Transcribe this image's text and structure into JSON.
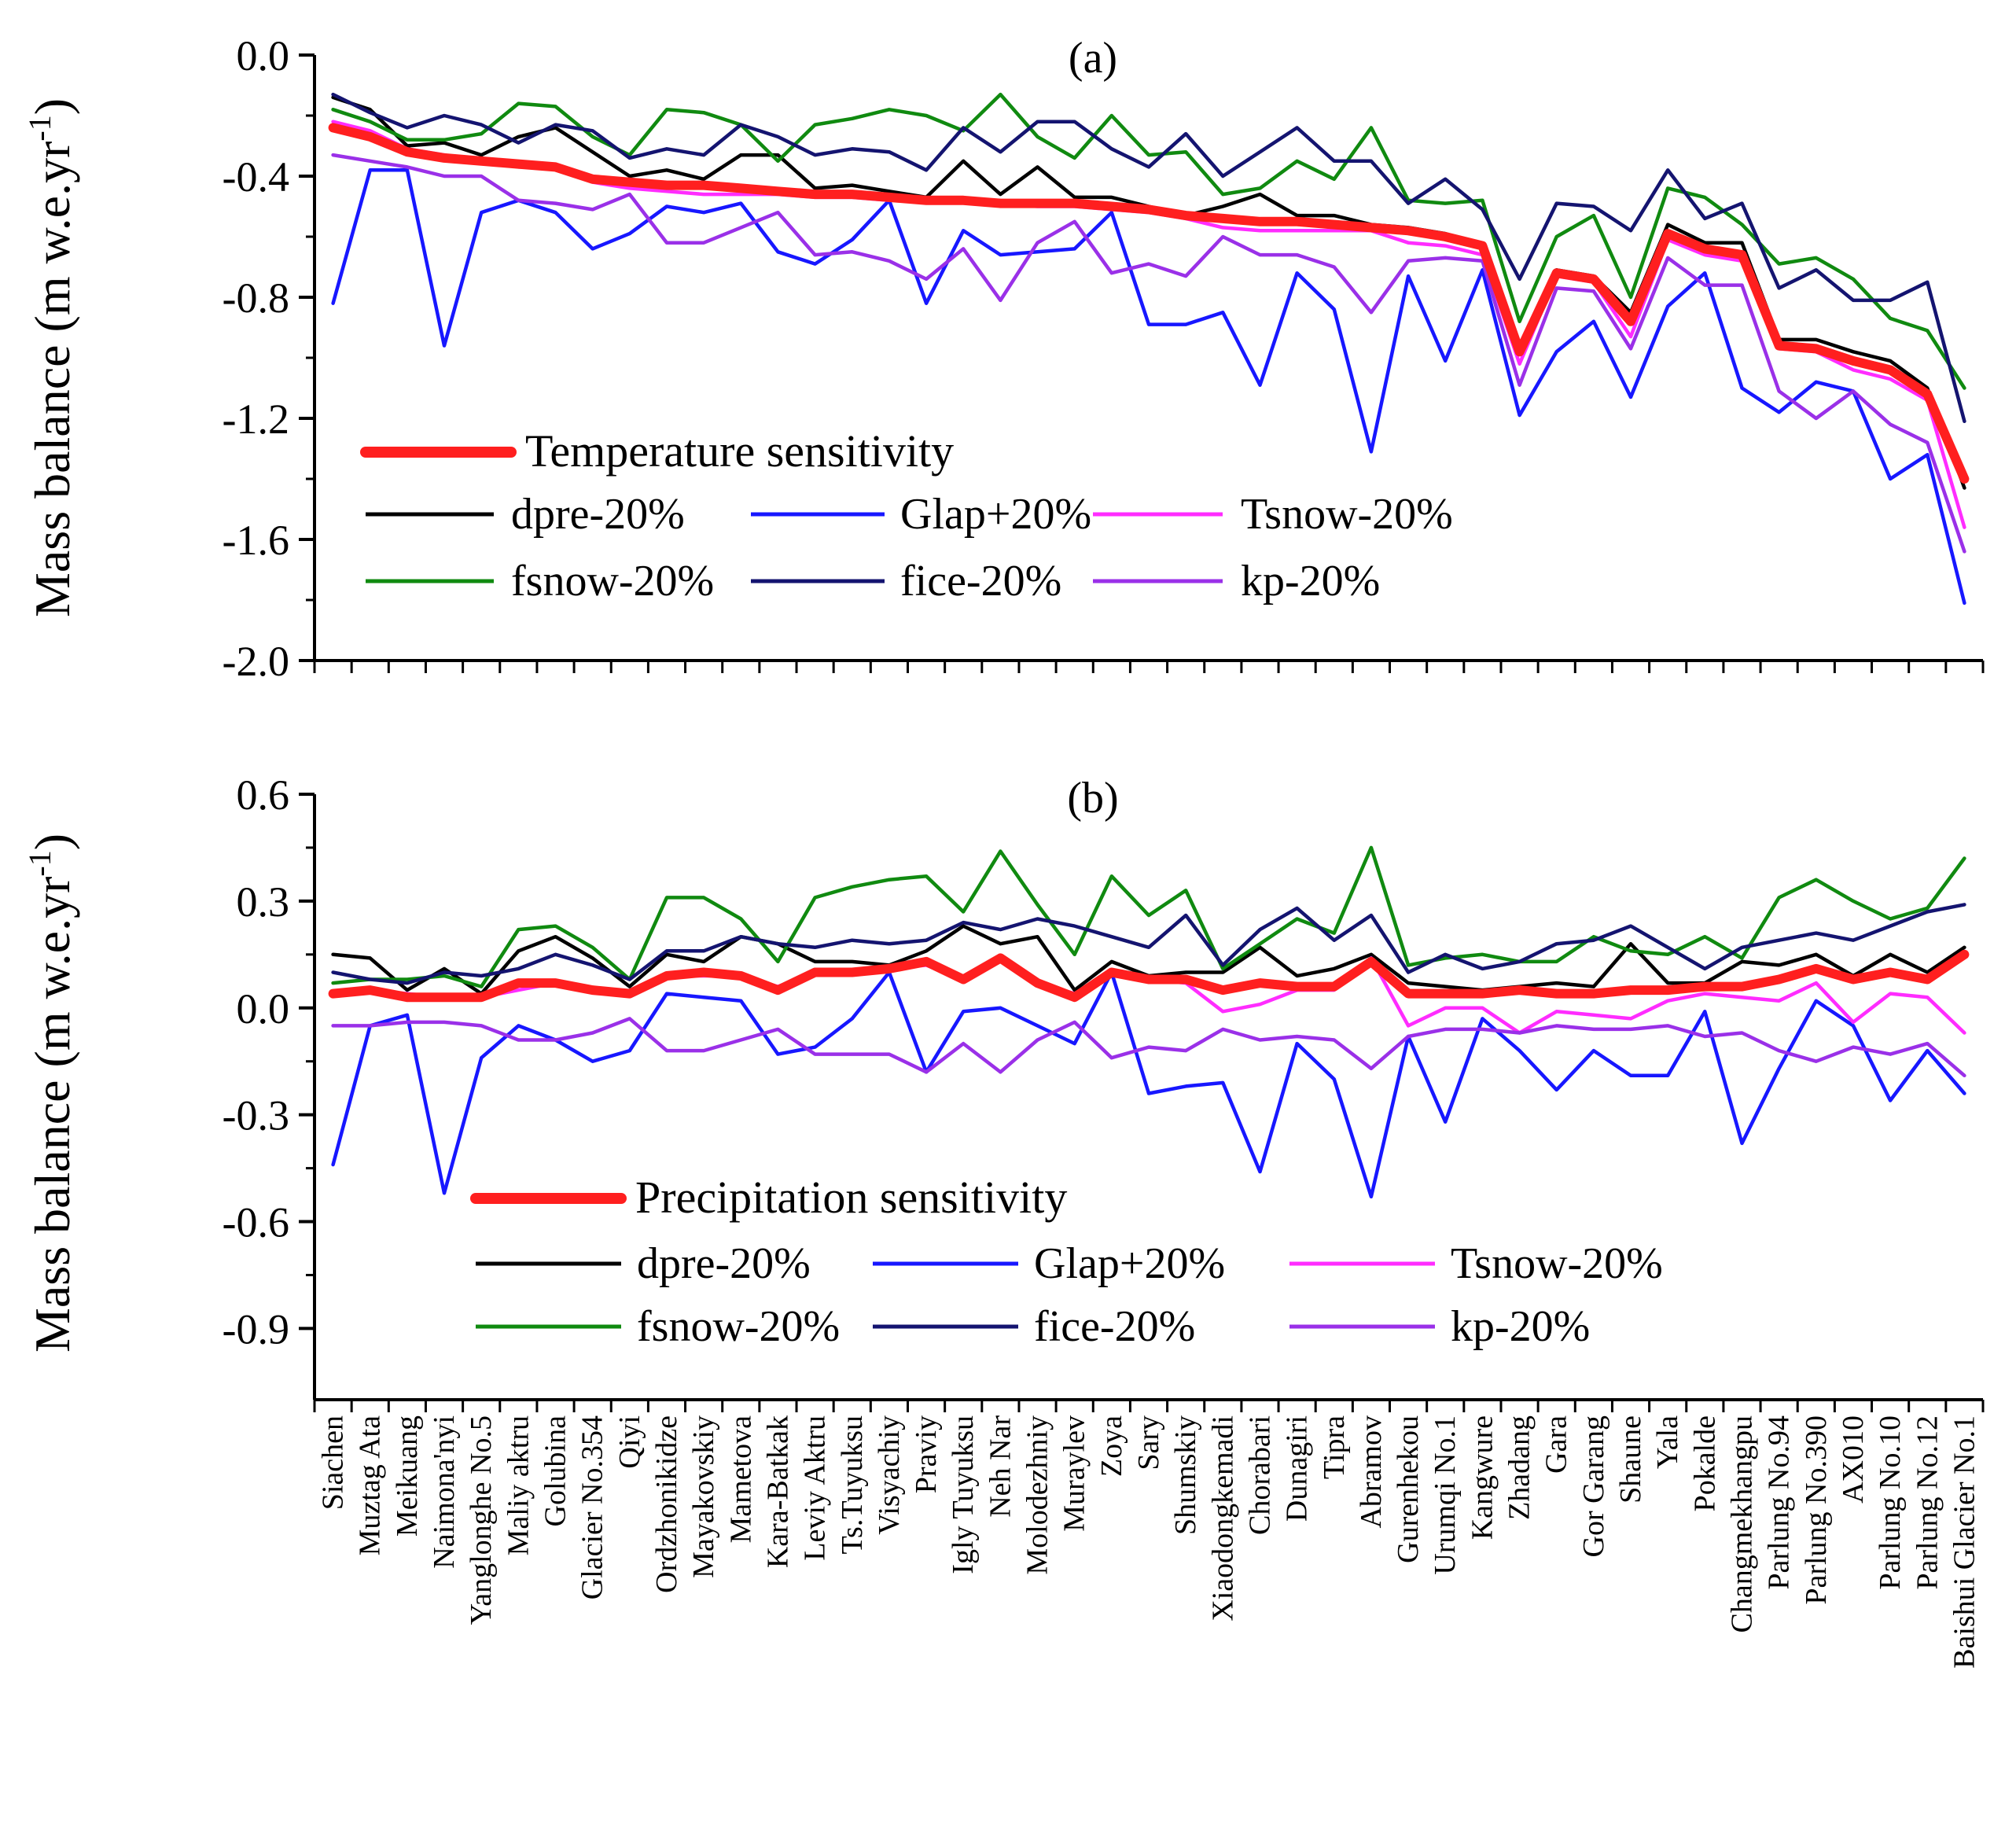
{
  "categories": [
    "Siachen",
    "Muztag Ata",
    "Meikuang",
    "Naimona'nyi",
    "Yanglonghe No.5",
    "Maliy aktru",
    "Golubina",
    "Glacier No.354",
    "Qiyi",
    "Ordzhonikidze",
    "Mayakovskiy",
    "Mametova",
    "Kara-Batkak",
    "Leviy Aktru",
    "Ts.Tuyuksu",
    "Visyachiy",
    "Praviy",
    "Igly Tuyuksu",
    "Neh Nar",
    "Molodezhniy",
    "Muraylev",
    "Zoya",
    "Sary",
    "Shumskiy",
    "Xiaodongkemadi",
    "Chorabari",
    "Dunagiri",
    "Tipra",
    "Abramov",
    "Gurenhekou",
    "Urumqi No.1",
    "Kangwure",
    "Zhadang",
    "Gara",
    "Gor Garang",
    "Shaune",
    "Yala",
    "Pokalde",
    "Changmekhangpu",
    "Parlung No.94",
    "Parlung No.390",
    "AX010",
    "Parlung No.10",
    "Parlung No.12",
    "Baishui Glacier No.1"
  ],
  "chart_data": [
    {
      "type": "line",
      "panel_label": "(a)",
      "ylabel": "Mass balance (m w.e.yr",
      "ylabel_sup": "-1",
      "ylabel_close": ")",
      "ylim": [
        -2.0,
        0.0
      ],
      "yticks": [
        "0.0",
        "-0.4",
        "-0.8",
        "-1.2",
        "-1.6",
        "-2.0"
      ],
      "ytick_values": [
        0.0,
        -0.4,
        -0.8,
        -1.2,
        -1.6,
        -2.0
      ],
      "legend_title": "Temperature sensitivity",
      "legend_title_color": "#ff1f1f",
      "series": [
        {
          "name": "dpre-20%",
          "color": "#000000",
          "values": [
            -0.14,
            -0.18,
            -0.3,
            -0.29,
            -0.33,
            -0.27,
            -0.24,
            -0.32,
            -0.4,
            -0.38,
            -0.41,
            -0.33,
            -0.33,
            -0.44,
            -0.43,
            -0.45,
            -0.47,
            -0.35,
            -0.46,
            -0.37,
            -0.47,
            -0.47,
            -0.5,
            -0.53,
            -0.5,
            -0.46,
            -0.53,
            -0.53,
            -0.56,
            -0.57,
            -0.59,
            -0.63,
            -0.96,
            -0.71,
            -0.73,
            -0.85,
            -0.56,
            -0.62,
            -0.62,
            -0.94,
            -0.94,
            -0.98,
            -1.01,
            -1.1,
            -1.43
          ]
        },
        {
          "name": "Glap+20%",
          "color": "#1717ff",
          "values": [
            -0.82,
            -0.38,
            -0.38,
            -0.96,
            -0.52,
            -0.48,
            -0.52,
            -0.64,
            -0.59,
            -0.5,
            -0.52,
            -0.49,
            -0.65,
            -0.69,
            -0.61,
            -0.48,
            -0.82,
            -0.58,
            -0.66,
            -0.65,
            -0.64,
            -0.52,
            -0.89,
            -0.89,
            -0.85,
            -1.09,
            -0.72,
            -0.84,
            -1.31,
            -0.73,
            -1.01,
            -0.71,
            -1.19,
            -0.98,
            -0.88,
            -1.13,
            -0.83,
            -0.72,
            -1.1,
            -1.18,
            -1.08,
            -1.11,
            -1.4,
            -1.32,
            -1.81
          ]
        },
        {
          "name": "Tsnow-20%",
          "color": "#ff2cff",
          "values": [
            -0.22,
            -0.25,
            -0.31,
            -0.33,
            -0.35,
            -0.37,
            -0.37,
            -0.42,
            -0.44,
            -0.45,
            -0.46,
            -0.46,
            -0.46,
            -0.47,
            -0.47,
            -0.48,
            -0.48,
            -0.48,
            -0.49,
            -0.5,
            -0.5,
            -0.51,
            -0.52,
            -0.54,
            -0.57,
            -0.58,
            -0.58,
            -0.58,
            -0.58,
            -0.62,
            -0.63,
            -0.66,
            -1.02,
            -0.73,
            -0.75,
            -0.93,
            -0.61,
            -0.66,
            -0.68,
            -0.97,
            -0.98,
            -1.04,
            -1.07,
            -1.14,
            -1.56
          ]
        },
        {
          "name": "fsnow-20%",
          "color": "#108a10",
          "values": [
            -0.18,
            -0.22,
            -0.28,
            -0.28,
            -0.26,
            -0.16,
            -0.17,
            -0.27,
            -0.33,
            -0.18,
            -0.19,
            -0.23,
            -0.35,
            -0.23,
            -0.21,
            -0.18,
            -0.2,
            -0.25,
            -0.13,
            -0.27,
            -0.34,
            -0.2,
            -0.33,
            -0.32,
            -0.46,
            -0.44,
            -0.35,
            -0.41,
            -0.24,
            -0.48,
            -0.49,
            -0.48,
            -0.88,
            -0.6,
            -0.53,
            -0.8,
            -0.44,
            -0.47,
            -0.56,
            -0.69,
            -0.67,
            -0.74,
            -0.87,
            -0.91,
            -1.1
          ]
        },
        {
          "name": "fice-20%",
          "color": "#141470",
          "values": [
            -0.13,
            -0.19,
            -0.24,
            -0.2,
            -0.23,
            -0.29,
            -0.23,
            -0.25,
            -0.34,
            -0.31,
            -0.33,
            -0.23,
            -0.27,
            -0.33,
            -0.31,
            -0.32,
            -0.38,
            -0.24,
            -0.32,
            -0.22,
            -0.22,
            -0.31,
            -0.37,
            -0.26,
            -0.4,
            -0.32,
            -0.24,
            -0.35,
            -0.35,
            -0.49,
            -0.41,
            -0.51,
            -0.74,
            -0.49,
            -0.5,
            -0.58,
            -0.38,
            -0.54,
            -0.49,
            -0.77,
            -0.71,
            -0.81,
            -0.81,
            -0.75,
            -1.21
          ]
        },
        {
          "name": "kp-20%",
          "color": "#9a30e8",
          "values": [
            -0.33,
            -0.35,
            -0.37,
            -0.4,
            -0.4,
            -0.48,
            -0.49,
            -0.51,
            -0.46,
            -0.62,
            -0.62,
            -0.57,
            -0.52,
            -0.66,
            -0.65,
            -0.68,
            -0.74,
            -0.64,
            -0.81,
            -0.62,
            -0.55,
            -0.72,
            -0.69,
            -0.73,
            -0.6,
            -0.66,
            -0.66,
            -0.7,
            -0.85,
            -0.68,
            -0.67,
            -0.68,
            -1.09,
            -0.77,
            -0.78,
            -0.97,
            -0.67,
            -0.76,
            -0.76,
            -1.11,
            -1.2,
            -1.11,
            -1.22,
            -1.28,
            -1.64
          ]
        },
        {
          "name": "Temperature sensitivity",
          "color": "#ff1f1f",
          "thick": true,
          "values": [
            -0.24,
            -0.27,
            -0.32,
            -0.34,
            -0.35,
            -0.36,
            -0.37,
            -0.41,
            -0.42,
            -0.43,
            -0.43,
            -0.44,
            -0.45,
            -0.46,
            -0.46,
            -0.47,
            -0.48,
            -0.48,
            -0.49,
            -0.49,
            -0.49,
            -0.5,
            -0.51,
            -0.53,
            -0.54,
            -0.55,
            -0.55,
            -0.56,
            -0.57,
            -0.58,
            -0.6,
            -0.63,
            -0.98,
            -0.72,
            -0.74,
            -0.88,
            -0.59,
            -0.64,
            -0.66,
            -0.96,
            -0.97,
            -1.01,
            -1.04,
            -1.12,
            -1.4
          ]
        }
      ],
      "legend_rows": [
        [
          "dpre-20%",
          "Glap+20%",
          "Tsnow-20%"
        ],
        [
          "fsnow-20%",
          "fice-20%",
          "kp-20%"
        ]
      ]
    },
    {
      "type": "line",
      "panel_label": "(b)",
      "ylabel": "Mass balance (m w.e.yr",
      "ylabel_sup": "-1",
      "ylabel_close": ")",
      "ylim": [
        -1.1,
        0.6
      ],
      "yticks": [
        "0.6",
        "0.3",
        "0.0",
        "-0.3",
        "-0.6",
        "-0.9"
      ],
      "ytick_values": [
        0.6,
        0.3,
        0.0,
        -0.3,
        -0.6,
        -0.9
      ],
      "legend_title": "Precipitation sensitivity",
      "legend_title_color": "#ff1f1f",
      "series": [
        {
          "name": "dpre-20%",
          "color": "#000000",
          "values": [
            0.15,
            0.14,
            0.05,
            0.11,
            0.04,
            0.16,
            0.2,
            0.14,
            0.06,
            0.15,
            0.13,
            0.2,
            0.18,
            0.13,
            0.13,
            0.12,
            0.16,
            0.23,
            0.18,
            0.2,
            0.05,
            0.13,
            0.09,
            0.1,
            0.1,
            0.17,
            0.09,
            0.11,
            0.15,
            0.07,
            0.06,
            0.05,
            0.06,
            0.07,
            0.06,
            0.18,
            0.07,
            0.07,
            0.13,
            0.12,
            0.15,
            0.09,
            0.15,
            0.1,
            0.17
          ]
        },
        {
          "name": "Glap+20%",
          "color": "#1717ff",
          "values": [
            -0.44,
            -0.05,
            -0.02,
            -0.52,
            -0.14,
            -0.05,
            -0.09,
            -0.15,
            -0.12,
            0.04,
            0.03,
            0.02,
            -0.13,
            -0.11,
            -0.03,
            0.1,
            -0.18,
            -0.01,
            0.0,
            -0.05,
            -0.1,
            0.1,
            -0.24,
            -0.22,
            -0.21,
            -0.46,
            -0.1,
            -0.2,
            -0.53,
            -0.08,
            -0.32,
            -0.03,
            -0.12,
            -0.23,
            -0.12,
            -0.19,
            -0.19,
            -0.01,
            -0.38,
            -0.17,
            0.02,
            -0.05,
            -0.26,
            -0.12,
            -0.24
          ]
        },
        {
          "name": "Tsnow-20%",
          "color": "#ff2cff",
          "values": [
            0.04,
            0.05,
            0.04,
            0.03,
            0.03,
            0.05,
            0.07,
            0.05,
            0.04,
            0.09,
            0.09,
            0.09,
            0.06,
            0.1,
            0.1,
            0.11,
            0.12,
            0.08,
            0.14,
            0.07,
            0.04,
            0.1,
            0.08,
            0.07,
            -0.01,
            0.01,
            0.05,
            0.05,
            0.14,
            -0.05,
            0.0,
            0.0,
            -0.07,
            -0.01,
            -0.02,
            -0.03,
            0.02,
            0.04,
            0.03,
            0.02,
            0.07,
            -0.04,
            0.04,
            0.03,
            -0.07
          ]
        },
        {
          "name": "fsnow-20%",
          "color": "#108a10",
          "values": [
            0.07,
            0.08,
            0.08,
            0.09,
            0.06,
            0.22,
            0.23,
            0.17,
            0.08,
            0.31,
            0.31,
            0.25,
            0.13,
            0.31,
            0.34,
            0.36,
            0.37,
            0.27,
            0.44,
            0.29,
            0.15,
            0.37,
            0.26,
            0.33,
            0.11,
            0.18,
            0.25,
            0.21,
            0.45,
            0.12,
            0.14,
            0.15,
            0.13,
            0.13,
            0.2,
            0.16,
            0.15,
            0.2,
            0.14,
            0.31,
            0.36,
            0.3,
            0.25,
            0.28,
            0.42
          ]
        },
        {
          "name": "fice-20%",
          "color": "#141470",
          "values": [
            0.1,
            0.08,
            0.07,
            0.1,
            0.09,
            0.11,
            0.15,
            0.12,
            0.08,
            0.16,
            0.16,
            0.2,
            0.18,
            0.17,
            0.19,
            0.18,
            0.19,
            0.24,
            0.22,
            0.25,
            0.23,
            0.2,
            0.17,
            0.26,
            0.12,
            0.22,
            0.28,
            0.19,
            0.26,
            0.1,
            0.15,
            0.11,
            0.13,
            0.18,
            0.19,
            0.23,
            0.17,
            0.11,
            0.17,
            0.19,
            0.21,
            0.19,
            0.23,
            0.27,
            0.29
          ]
        },
        {
          "name": "kp-20%",
          "color": "#9a30e8",
          "values": [
            -0.05,
            -0.05,
            -0.04,
            -0.04,
            -0.05,
            -0.09,
            -0.09,
            -0.07,
            -0.03,
            -0.12,
            -0.12,
            -0.09,
            -0.06,
            -0.13,
            -0.13,
            -0.13,
            -0.18,
            -0.1,
            -0.18,
            -0.09,
            -0.04,
            -0.14,
            -0.11,
            -0.12,
            -0.06,
            -0.09,
            -0.08,
            -0.09,
            -0.17,
            -0.08,
            -0.06,
            -0.06,
            -0.07,
            -0.05,
            -0.06,
            -0.06,
            -0.05,
            -0.08,
            -0.07,
            -0.12,
            -0.15,
            -0.11,
            -0.13,
            -0.1,
            -0.19
          ]
        },
        {
          "name": "Precipitation sensitivity",
          "color": "#ff1f1f",
          "thick": true,
          "values": [
            0.04,
            0.05,
            0.03,
            0.03,
            0.03,
            0.07,
            0.07,
            0.05,
            0.04,
            0.09,
            0.1,
            0.09,
            0.05,
            0.1,
            0.1,
            0.11,
            0.13,
            0.08,
            0.14,
            0.07,
            0.03,
            0.1,
            0.08,
            0.08,
            0.05,
            0.07,
            0.06,
            0.06,
            0.13,
            0.04,
            0.04,
            0.04,
            0.05,
            0.04,
            0.04,
            0.05,
            0.05,
            0.06,
            0.06,
            0.08,
            0.11,
            0.08,
            0.1,
            0.08,
            0.15
          ]
        }
      ],
      "legend_rows": [
        [
          "dpre-20%",
          "Glap+20%",
          "Tsnow-20%"
        ],
        [
          "fsnow-20%",
          "fice-20%",
          "kp-20%"
        ]
      ]
    }
  ]
}
